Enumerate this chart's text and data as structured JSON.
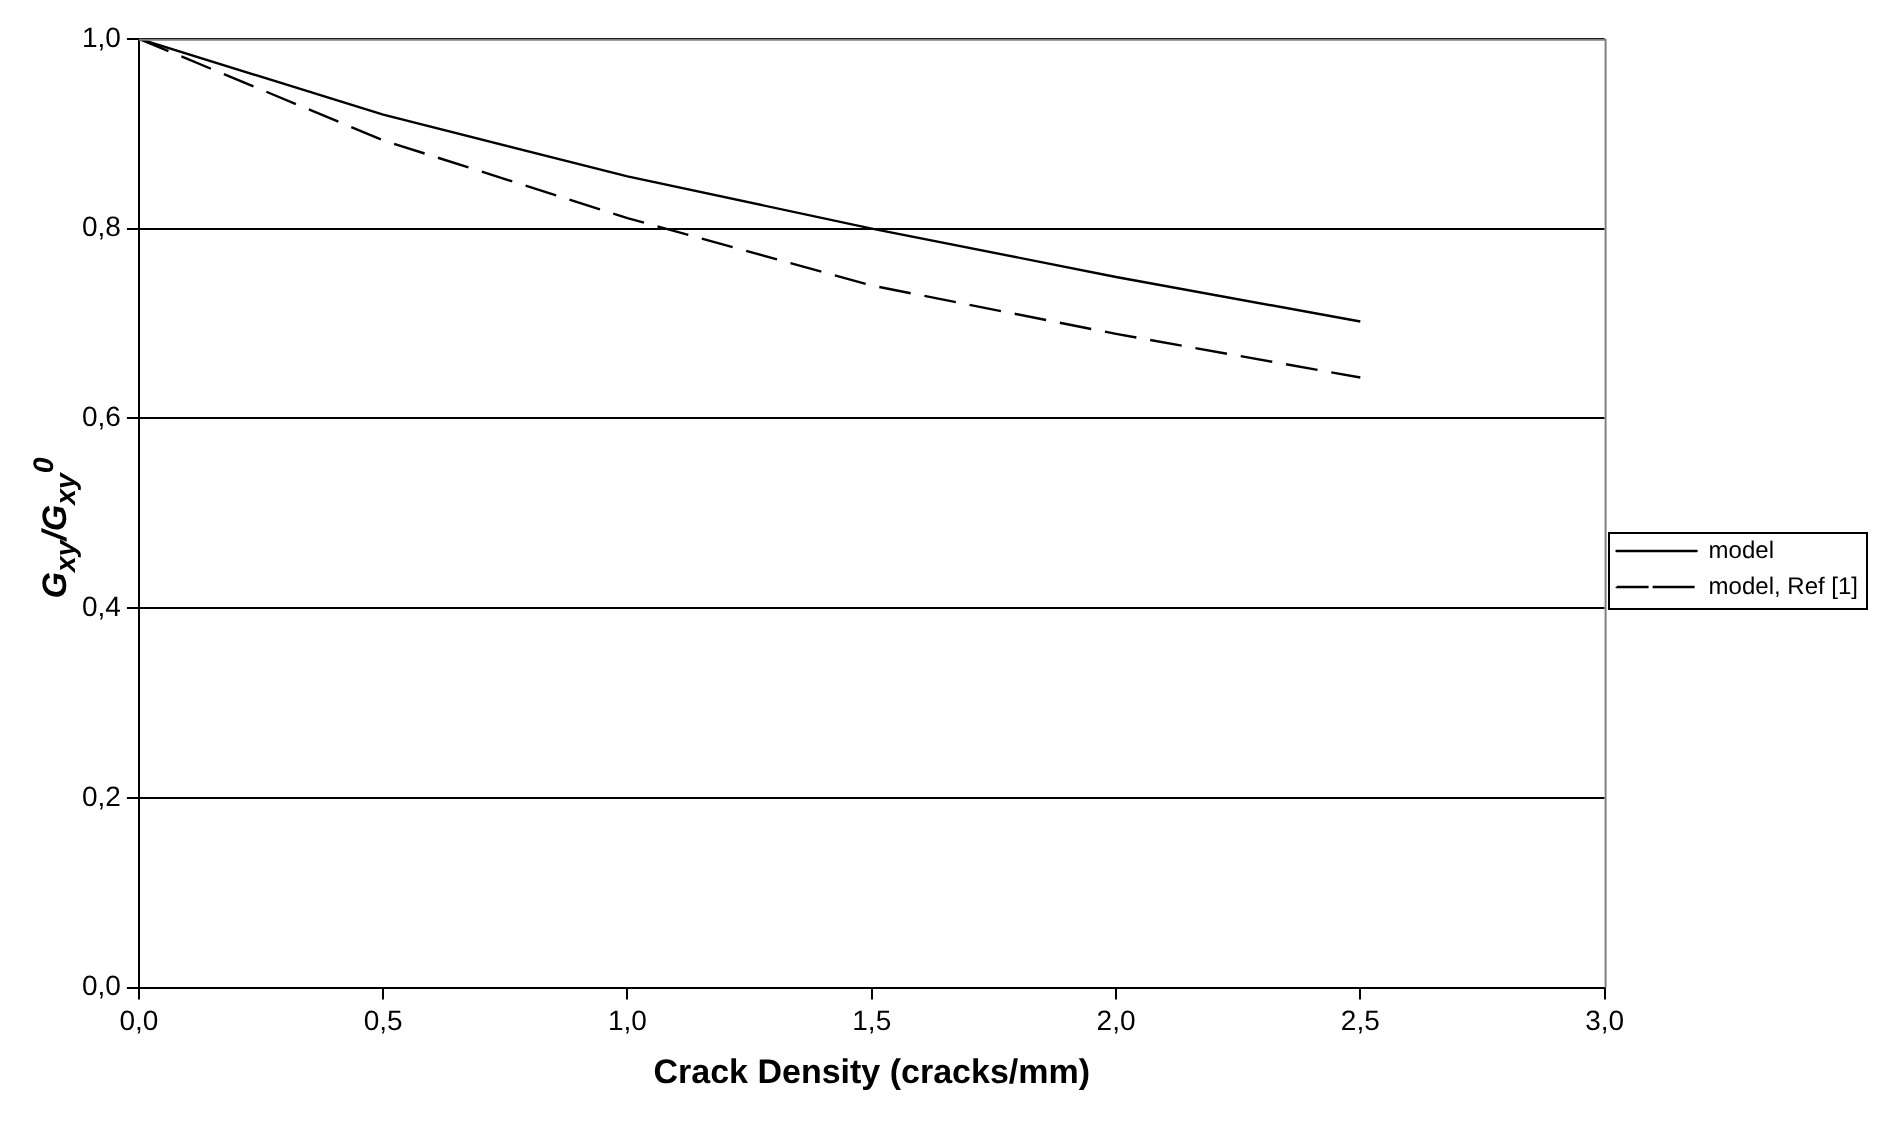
{
  "chart_data": {
    "type": "line",
    "xlabel": "Crack Density (cracks/mm)",
    "ylabel": "G$_{xy}$/G$_{xy}$$^{0}$",
    "x": [
      0,
      0.5,
      1,
      1.5,
      2,
      2.5
    ],
    "series": [
      {
        "name": "model",
        "color": "#000000",
        "line_style": "solid",
        "values": [
          1,
          0.92,
          0.855,
          0.8,
          0.749,
          0.702
        ]
      },
      {
        "name": "model, Ref [1]",
        "color": "#000000",
        "line_style": "dashed",
        "values": [
          1,
          0.893,
          0.811,
          0.74,
          0.689,
          0.643
        ]
      }
    ],
    "xlim": [
      0,
      3
    ],
    "xticks": [
      {
        "value": 0,
        "label": "0,0"
      },
      {
        "value": 0.5,
        "label": "0,5"
      },
      {
        "value": 1,
        "label": "1,0"
      },
      {
        "value": 1.5,
        "label": "1,5"
      },
      {
        "value": 2,
        "label": "2,0"
      },
      {
        "value": 2.5,
        "label": "2,5"
      },
      {
        "value": 3,
        "label": "3,0"
      }
    ],
    "ylim": [
      0,
      1
    ],
    "yticks": [
      {
        "value": 0,
        "label": "0,0"
      },
      {
        "value": 0.2,
        "label": "0,2"
      },
      {
        "value": 0.4,
        "label": "0,4"
      },
      {
        "value": 0.6,
        "label": "0,6"
      },
      {
        "value": 0.8,
        "label": "0,8"
      },
      {
        "value": 1,
        "label": "1,0"
      }
    ],
    "grid": "y",
    "legend": "right",
    "marker": "none"
  }
}
